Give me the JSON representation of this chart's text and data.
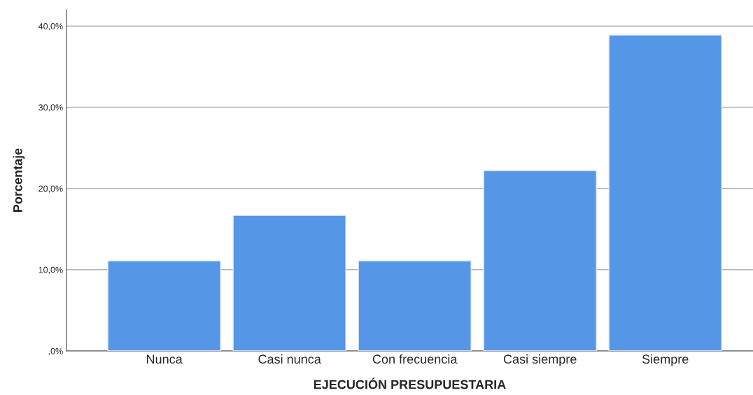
{
  "chart_data": {
    "type": "bar",
    "xlabel": "EJECUCIÓN PRESUPUESTARIA",
    "ylabel": "Porcentaje",
    "categories": [
      "Nunca",
      "Casi nunca",
      "Con frecuencia",
      "Casi siempre",
      "Siempre"
    ],
    "values": [
      11.1,
      16.7,
      11.1,
      22.2,
      38.9
    ],
    "color": "#5596e6",
    "ylim": [
      0,
      42
    ],
    "yticks": [
      {
        "value": 0,
        "label": ",0%"
      },
      {
        "value": 10,
        "label": "10,0%"
      },
      {
        "value": 20,
        "label": "20,0%"
      },
      {
        "value": 30,
        "label": "30,0%"
      },
      {
        "value": 40,
        "label": "40,0%"
      }
    ],
    "grid": "y"
  }
}
